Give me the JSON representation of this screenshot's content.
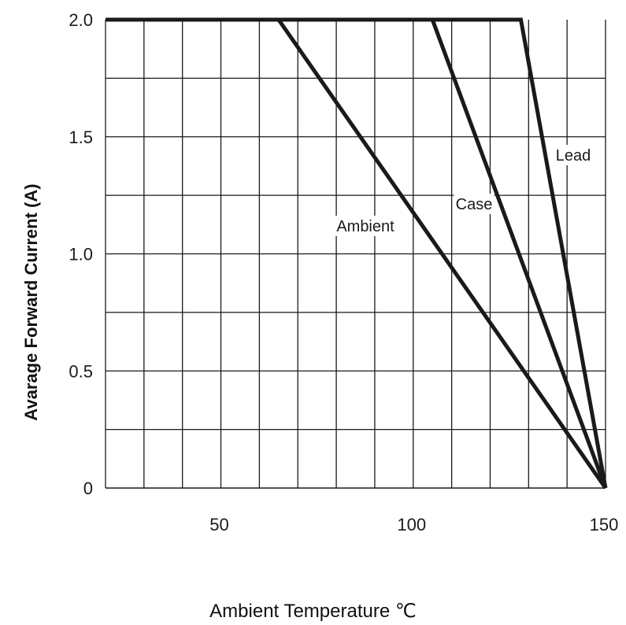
{
  "chart_data": {
    "type": "line",
    "xlabel": "Ambient Temperature ℃",
    "ylabel": "Avarage Forward Current (A)",
    "xlim": [
      20,
      150
    ],
    "ylim": [
      0,
      2.0
    ],
    "x_ticks": [
      50,
      100,
      150
    ],
    "x_tick_labels": [
      "50",
      "100",
      "150"
    ],
    "y_ticks": [
      0,
      0.5,
      1.0,
      1.5,
      2.0
    ],
    "y_tick_labels": [
      "0",
      "0.5",
      "1.0",
      "1.5",
      "2.0"
    ],
    "grid": true,
    "legend": "none",
    "series": [
      {
        "name": "Ambient",
        "x": [
          20,
          65,
          150
        ],
        "y": [
          2.0,
          2.0,
          0
        ]
      },
      {
        "name": "Case",
        "x": [
          20,
          105,
          150
        ],
        "y": [
          2.0,
          2.0,
          0
        ]
      },
      {
        "name": "Lead",
        "x": [
          20,
          128,
          150
        ],
        "y": [
          2.0,
          2.0,
          0
        ]
      }
    ],
    "line_color": "#1a1a1a",
    "grid_color": "#1a1a1a"
  }
}
